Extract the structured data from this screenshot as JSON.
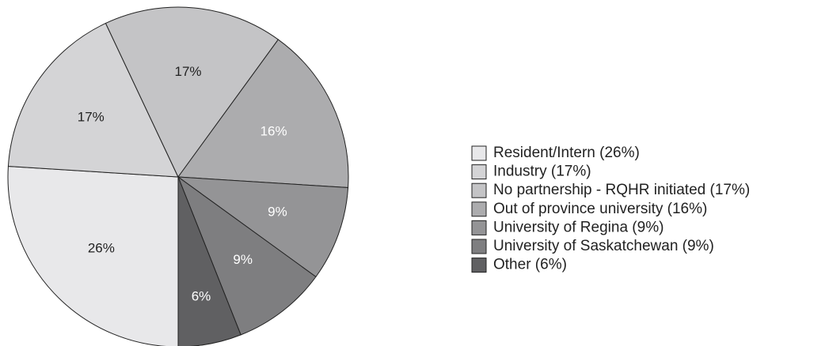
{
  "chart_data": {
    "type": "pie",
    "categories": [
      "Resident/Intern (26%)",
      "Industry (17%)",
      "No partnership - RQHR initiated (17%)",
      "Out of province university (16%)",
      "University of Regina (9%)",
      "University of Saskatchewan (9%)",
      "Other (6%)"
    ],
    "values": [
      26,
      17,
      17,
      16,
      9,
      9,
      6
    ],
    "value_labels": [
      "26%",
      "17%",
      "17%",
      "16%",
      "9%",
      "9%",
      "6%"
    ],
    "colors": [
      "#e8e8ea",
      "#d4d4d6",
      "#c4c4c6",
      "#acacae",
      "#949496",
      "#7e7e80",
      "#606062"
    ],
    "legend": "right"
  }
}
